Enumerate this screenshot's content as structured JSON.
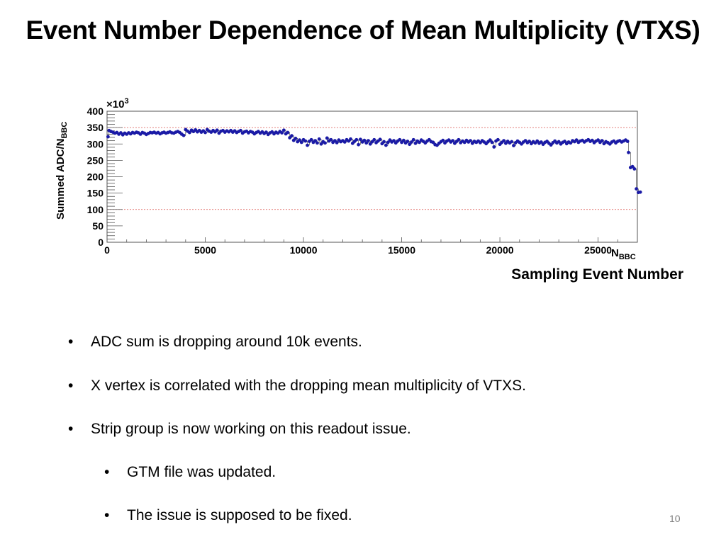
{
  "title": "Event Number Dependence of Mean Multiplicity (VTXS)",
  "axis_caption": "Sampling Event Number",
  "bullets": [
    {
      "text": "ADC sum is dropping around 10k events.",
      "level": 1
    },
    {
      "text": "X vertex is correlated with the dropping mean multiplicity of VTXS.",
      "level": 1
    },
    {
      "text": "Strip group is now working on this readout  issue.",
      "level": 1
    },
    {
      "text": "GTM file was updated.",
      "level": 2
    },
    {
      "text": "The issue is supposed to be fixed.",
      "level": 2
    }
  ],
  "bullet_char": "•",
  "page_number": "10",
  "chart_data": {
    "type": "scatter",
    "ylabel_main": "Summed ADC/N",
    "ylabel_sub": "BBC",
    "xlabel_main": "N",
    "xlabel_sub": "BBC",
    "y_exponent_prefix": "×10",
    "y_exponent_power": "3",
    "xlim": [
      0,
      27000
    ],
    "ylim": [
      0,
      400
    ],
    "x_ticks": [
      0,
      5000,
      10000,
      15000,
      20000,
      25000
    ],
    "y_ticks": [
      0,
      50,
      100,
      150,
      200,
      250,
      300,
      350,
      400
    ],
    "reference_lines": [
      100,
      350
    ],
    "grid": false,
    "marker_color": "#1a1aa6",
    "ref_line_color": "#d9534f",
    "series": [
      {
        "points": [
          [
            50,
            322
          ],
          [
            100,
            341
          ],
          [
            200,
            338
          ],
          [
            300,
            336
          ],
          [
            400,
            333
          ],
          [
            500,
            335
          ],
          [
            600,
            330
          ],
          [
            700,
            334
          ],
          [
            800,
            328
          ],
          [
            900,
            333
          ],
          [
            1000,
            330
          ],
          [
            1100,
            334
          ],
          [
            1200,
            331
          ],
          [
            1300,
            335
          ],
          [
            1400,
            333
          ],
          [
            1500,
            336
          ],
          [
            1600,
            334
          ],
          [
            1700,
            330
          ],
          [
            1800,
            335
          ],
          [
            1900,
            333
          ],
          [
            2000,
            329
          ],
          [
            2100,
            332
          ],
          [
            2200,
            335
          ],
          [
            2300,
            334
          ],
          [
            2400,
            336
          ],
          [
            2500,
            333
          ],
          [
            2600,
            335
          ],
          [
            2700,
            331
          ],
          [
            2800,
            334
          ],
          [
            2900,
            336
          ],
          [
            3000,
            333
          ],
          [
            3100,
            335
          ],
          [
            3200,
            337
          ],
          [
            3300,
            334
          ],
          [
            3400,
            333
          ],
          [
            3500,
            336
          ],
          [
            3600,
            338
          ],
          [
            3700,
            335
          ],
          [
            3800,
            330
          ],
          [
            3900,
            326
          ],
          [
            4000,
            344
          ],
          [
            4100,
            339
          ],
          [
            4200,
            335
          ],
          [
            4300,
            342
          ],
          [
            4400,
            338
          ],
          [
            4500,
            343
          ],
          [
            4600,
            337
          ],
          [
            4700,
            341
          ],
          [
            4800,
            336
          ],
          [
            4900,
            340
          ],
          [
            5000,
            335
          ],
          [
            5100,
            344
          ],
          [
            5200,
            339
          ],
          [
            5300,
            336
          ],
          [
            5400,
            341
          ],
          [
            5500,
            337
          ],
          [
            5600,
            342
          ],
          [
            5700,
            333
          ],
          [
            5800,
            339
          ],
          [
            5900,
            341
          ],
          [
            6000,
            336
          ],
          [
            6100,
            340
          ],
          [
            6200,
            337
          ],
          [
            6300,
            341
          ],
          [
            6400,
            336
          ],
          [
            6500,
            340
          ],
          [
            6600,
            335
          ],
          [
            6700,
            338
          ],
          [
            6800,
            341
          ],
          [
            6900,
            333
          ],
          [
            7000,
            337
          ],
          [
            7100,
            339
          ],
          [
            7200,
            334
          ],
          [
            7300,
            338
          ],
          [
            7400,
            336
          ],
          [
            7500,
            331
          ],
          [
            7600,
            335
          ],
          [
            7700,
            338
          ],
          [
            7800,
            333
          ],
          [
            7900,
            337
          ],
          [
            8000,
            332
          ],
          [
            8100,
            336
          ],
          [
            8200,
            329
          ],
          [
            8300,
            334
          ],
          [
            8400,
            337
          ],
          [
            8500,
            331
          ],
          [
            8600,
            336
          ],
          [
            8700,
            333
          ],
          [
            8800,
            338
          ],
          [
            8900,
            334
          ],
          [
            9000,
            342
          ],
          [
            9100,
            331
          ],
          [
            9200,
            335
          ],
          [
            9300,
            319
          ],
          [
            9400,
            325
          ],
          [
            9500,
            311
          ],
          [
            9600,
            317
          ],
          [
            9700,
            307
          ],
          [
            9800,
            312
          ],
          [
            9900,
            305
          ],
          [
            10000,
            313
          ],
          [
            10100,
            309
          ],
          [
            10200,
            296
          ],
          [
            10300,
            308
          ],
          [
            10400,
            313
          ],
          [
            10500,
            305
          ],
          [
            10600,
            310
          ],
          [
            10700,
            303
          ],
          [
            10800,
            315
          ],
          [
            10900,
            300
          ],
          [
            11000,
            307
          ],
          [
            11100,
            303
          ],
          [
            11200,
            318
          ],
          [
            11300,
            309
          ],
          [
            11400,
            313
          ],
          [
            11500,
            305
          ],
          [
            11600,
            310
          ],
          [
            11700,
            304
          ],
          [
            11800,
            312
          ],
          [
            11900,
            307
          ],
          [
            12000,
            310
          ],
          [
            12100,
            306
          ],
          [
            12200,
            313
          ],
          [
            12300,
            309
          ],
          [
            12400,
            315
          ],
          [
            12500,
            302
          ],
          [
            12600,
            308
          ],
          [
            12700,
            313
          ],
          [
            12800,
            298
          ],
          [
            12900,
            314
          ],
          [
            13000,
            306
          ],
          [
            13100,
            311
          ],
          [
            13200,
            303
          ],
          [
            13300,
            310
          ],
          [
            13400,
            300
          ],
          [
            13500,
            307
          ],
          [
            13600,
            313
          ],
          [
            13700,
            304
          ],
          [
            13800,
            309
          ],
          [
            13900,
            314
          ],
          [
            14000,
            301
          ],
          [
            14100,
            307
          ],
          [
            14200,
            296
          ],
          [
            14300,
            305
          ],
          [
            14400,
            312
          ],
          [
            14500,
            306
          ],
          [
            14600,
            310
          ],
          [
            14700,
            303
          ],
          [
            14800,
            309
          ],
          [
            14900,
            313
          ],
          [
            15000,
            305
          ],
          [
            15100,
            311
          ],
          [
            15200,
            303
          ],
          [
            15300,
            308
          ],
          [
            15400,
            299
          ],
          [
            15500,
            306
          ],
          [
            15600,
            313
          ],
          [
            15700,
            302
          ],
          [
            15800,
            309
          ],
          [
            15900,
            305
          ],
          [
            16000,
            312
          ],
          [
            16100,
            308
          ],
          [
            16200,
            303
          ],
          [
            16300,
            309
          ],
          [
            16400,
            313
          ],
          [
            16500,
            307
          ],
          [
            16600,
            305
          ],
          [
            16700,
            298
          ],
          [
            16800,
            296
          ],
          [
            16900,
            302
          ],
          [
            17000,
            307
          ],
          [
            17100,
            311
          ],
          [
            17200,
            303
          ],
          [
            17300,
            309
          ],
          [
            17400,
            312
          ],
          [
            17500,
            306
          ],
          [
            17600,
            310
          ],
          [
            17700,
            302
          ],
          [
            17800,
            308
          ],
          [
            17900,
            313
          ],
          [
            18000,
            304
          ],
          [
            18100,
            309
          ],
          [
            18200,
            305
          ],
          [
            18300,
            311
          ],
          [
            18400,
            306
          ],
          [
            18500,
            310
          ],
          [
            18600,
            302
          ],
          [
            18700,
            308
          ],
          [
            18800,
            305
          ],
          [
            18900,
            309
          ],
          [
            19000,
            304
          ],
          [
            19100,
            310
          ],
          [
            19200,
            306
          ],
          [
            19300,
            301
          ],
          [
            19400,
            307
          ],
          [
            19500,
            312
          ],
          [
            19600,
            305
          ],
          [
            19700,
            291
          ],
          [
            19800,
            309
          ],
          [
            19900,
            313
          ],
          [
            20000,
            299
          ],
          [
            20100,
            305
          ],
          [
            20200,
            310
          ],
          [
            20300,
            302
          ],
          [
            20400,
            308
          ],
          [
            20500,
            303
          ],
          [
            20600,
            307
          ],
          [
            20700,
            295
          ],
          [
            20800,
            304
          ],
          [
            20900,
            309
          ],
          [
            21000,
            305
          ],
          [
            21100,
            300
          ],
          [
            21200,
            306
          ],
          [
            21300,
            310
          ],
          [
            21400,
            304
          ],
          [
            21500,
            308
          ],
          [
            21600,
            301
          ],
          [
            21700,
            307
          ],
          [
            21800,
            303
          ],
          [
            21900,
            309
          ],
          [
            22000,
            302
          ],
          [
            22100,
            306
          ],
          [
            22200,
            299
          ],
          [
            22300,
            305
          ],
          [
            22400,
            308
          ],
          [
            22500,
            302
          ],
          [
            22600,
            297
          ],
          [
            22700,
            304
          ],
          [
            22800,
            309
          ],
          [
            22900,
            303
          ],
          [
            23000,
            307
          ],
          [
            23100,
            300
          ],
          [
            23200,
            305
          ],
          [
            23300,
            308
          ],
          [
            23400,
            301
          ],
          [
            23500,
            306
          ],
          [
            23600,
            303
          ],
          [
            23700,
            310
          ],
          [
            23800,
            307
          ],
          [
            23900,
            312
          ],
          [
            24000,
            305
          ],
          [
            24100,
            309
          ],
          [
            24200,
            311
          ],
          [
            24300,
            306
          ],
          [
            24400,
            310
          ],
          [
            24500,
            313
          ],
          [
            24600,
            308
          ],
          [
            24700,
            311
          ],
          [
            24800,
            304
          ],
          [
            24900,
            309
          ],
          [
            25000,
            312
          ],
          [
            25100,
            305
          ],
          [
            25200,
            310
          ],
          [
            25300,
            301
          ],
          [
            25400,
            307
          ],
          [
            25500,
            304
          ],
          [
            25600,
            300
          ],
          [
            25700,
            306
          ],
          [
            25800,
            309
          ],
          [
            25900,
            303
          ],
          [
            26000,
            308
          ],
          [
            26100,
            310
          ],
          [
            26200,
            306
          ],
          [
            26300,
            309
          ],
          [
            26400,
            312
          ],
          [
            26500,
            308
          ],
          [
            26550,
            274
          ],
          [
            26650,
            228
          ],
          [
            26750,
            231
          ],
          [
            26850,
            224
          ],
          [
            26950,
            163
          ],
          [
            27050,
            152
          ],
          [
            27150,
            153
          ]
        ]
      }
    ]
  }
}
